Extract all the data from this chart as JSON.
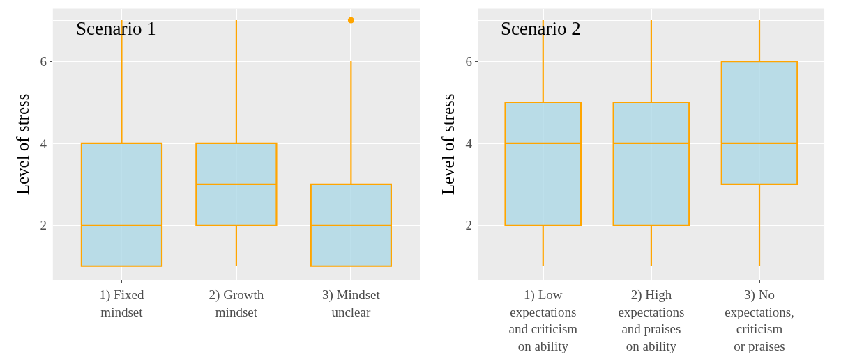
{
  "chart_data": [
    {
      "type": "box",
      "title": "Scenario 1",
      "ylabel": "Level of stress",
      "categories": [
        "1) Fixed\nmindset",
        "2) Growth\nmindset",
        "3) Mindset\nunclear"
      ],
      "ylim": [
        0.67,
        7.28
      ],
      "yticks": [
        2,
        4,
        6
      ],
      "grid": true,
      "color": "#ffa500",
      "boxes": [
        {
          "low": 1,
          "q1": 1,
          "median": 2,
          "q3": 4,
          "high": 7
        },
        {
          "low": 1,
          "q1": 2,
          "median": 3,
          "q3": 4,
          "high": 7
        },
        {
          "low": 1,
          "q1": 1,
          "median": 2,
          "q3": 3,
          "high": 6,
          "outliers": [
            7
          ]
        }
      ]
    },
    {
      "type": "box",
      "title": "Scenario 2",
      "ylabel": "Level of stress",
      "categories": [
        "1) Low\nexpectations\nand criticism\non ability",
        "2) High\nexpectations\nand praises\non ability",
        "3) No\nexpectations,\ncriticism\nor praises"
      ],
      "ylim": [
        0.67,
        7.28
      ],
      "yticks": [
        2,
        4,
        6
      ],
      "grid": true,
      "color": "#ffa500",
      "boxes": [
        {
          "low": 1,
          "q1": 2,
          "median": 4,
          "q3": 5,
          "high": 7
        },
        {
          "low": 1,
          "q1": 2,
          "median": 4,
          "q3": 5,
          "high": 7
        },
        {
          "low": 1,
          "q1": 3,
          "median": 4,
          "q3": 6,
          "high": 7
        }
      ]
    }
  ]
}
